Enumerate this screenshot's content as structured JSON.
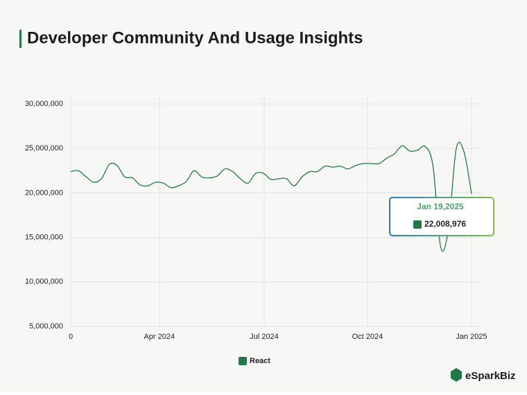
{
  "chart_data": {
    "type": "line",
    "title": "Developer Community And Usage Insights",
    "x": [
      0,
      1,
      2,
      3,
      4,
      5,
      6,
      7,
      8,
      9,
      10,
      11,
      12,
      13,
      14,
      15,
      16,
      17,
      18,
      19,
      20,
      21,
      22,
      23,
      24,
      25,
      26,
      27,
      28,
      29,
      30,
      31,
      32,
      33,
      34,
      35,
      36,
      37,
      38,
      39,
      40,
      41,
      42,
      43,
      44,
      45,
      46,
      47,
      48,
      49,
      50,
      51,
      52
    ],
    "series": [
      {
        "name": "React",
        "color": "#1e7a46",
        "values": [
          22400000,
          22500000,
          21800000,
          21200000,
          21600000,
          23200000,
          23100000,
          21800000,
          21700000,
          20900000,
          20800000,
          21200000,
          21100000,
          20600000,
          20800000,
          21300000,
          22500000,
          21800000,
          21700000,
          21900000,
          22700000,
          22400000,
          21600000,
          21100000,
          22200000,
          22200000,
          21500000,
          21600000,
          21600000,
          20800000,
          21800000,
          22400000,
          22400000,
          23000000,
          22900000,
          23000000,
          22700000,
          23100000,
          23300000,
          23300000,
          23300000,
          23900000,
          24400000,
          25300000,
          24700000,
          24800000,
          25200000,
          23000000,
          13900000,
          15900000,
          24900000,
          24700000,
          19900000
        ]
      }
    ],
    "xlim": [
      0,
      52
    ],
    "xticks": [
      0,
      {
        "value": 11.5,
        "label": "Apr 2024"
      },
      {
        "value": 25.1,
        "label": "Jul 2024"
      },
      {
        "value": 38.5,
        "label": "Oct 2024"
      },
      {
        "value": 52,
        "label": "Jan 2025"
      }
    ],
    "ylim": [
      5000000,
      30000000
    ],
    "yticks": [
      {
        "value": 5000000,
        "label": "5,000,000"
      },
      {
        "value": 10000000,
        "label": "10,000,000"
      },
      {
        "value": 15000000,
        "label": "15,000,000"
      },
      {
        "value": 20000000,
        "label": "20,000,000"
      },
      {
        "value": 25000000,
        "label": "25,000,000"
      },
      {
        "value": 30000000,
        "label": "30,000,000"
      }
    ],
    "grid": true,
    "legend": "bottom",
    "tooltip": {
      "date": "Jan 19,2025",
      "value": "22,008,976"
    }
  },
  "brand": "eSparkBiz"
}
